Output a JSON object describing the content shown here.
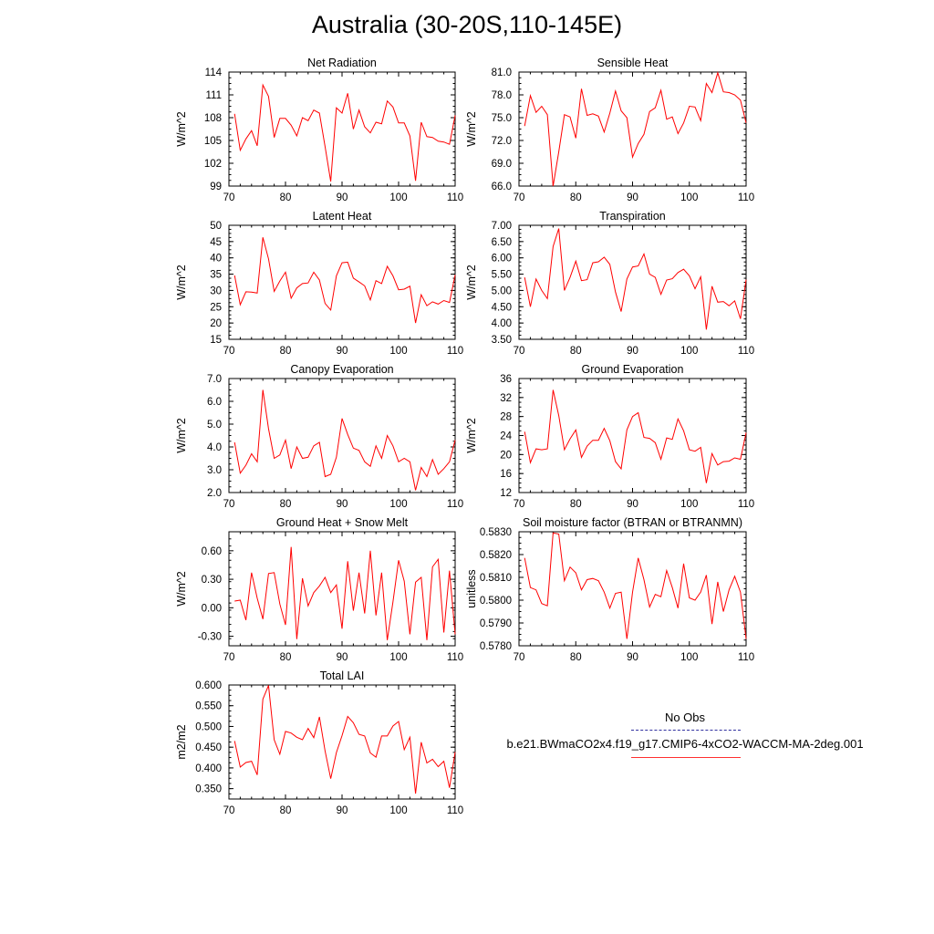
{
  "title": "Australia (30-20S,110-145E)",
  "legend": {
    "obs_label": "No Obs",
    "model_label": "b.e21.BWmaCO2x4.f19_g17.CMIP6-4xCO2-WACCM-MA-2deg.001",
    "obs_color": "#3030a0",
    "model_color": "#ff0000"
  },
  "chart_data": [
    {
      "type": "line",
      "title": "Net Radiation",
      "ylabel": "W/m^2",
      "xlim": [
        70,
        110
      ],
      "ylim": [
        99,
        114
      ],
      "yticks": [
        "99",
        "102",
        "105",
        "108",
        "111",
        "114"
      ],
      "xticks": [
        "70",
        "80",
        "90",
        "100",
        "110"
      ],
      "x": [
        71,
        72,
        73,
        74,
        75,
        76,
        77,
        78,
        79,
        80,
        81,
        82,
        83,
        84,
        85,
        86,
        87,
        88,
        89,
        90,
        91,
        92,
        93,
        94,
        95,
        96,
        97,
        98,
        99,
        100,
        101,
        102,
        103,
        104,
        105,
        106,
        107,
        108,
        109,
        110
      ],
      "series": [
        {
          "values": [
            108.5,
            103.7,
            105.2,
            106.3,
            104.3,
            112.3,
            110.8,
            105.4,
            107.9,
            107.9,
            107.0,
            105.6,
            108.0,
            107.6,
            109.0,
            108.6,
            104.2,
            99.6,
            109.3,
            108.6,
            111.2,
            106.5,
            109.0,
            106.8,
            106.0,
            107.4,
            107.2,
            110.2,
            109.4,
            107.3,
            107.3,
            105.6,
            99.7,
            107.4,
            105.5,
            105.4,
            104.9,
            104.8,
            104.5,
            108.3
          ]
        }
      ]
    },
    {
      "type": "line",
      "title": "Sensible Heat",
      "ylabel": "W/m^2",
      "xlim": [
        70,
        110
      ],
      "ylim": [
        66,
        81
      ],
      "yticks": [
        "66.0",
        "69.0",
        "72.0",
        "75.0",
        "78.0",
        "81.0"
      ],
      "xticks": [
        "70",
        "80",
        "90",
        "100",
        "110"
      ],
      "x": [
        71,
        72,
        73,
        74,
        75,
        76,
        77,
        78,
        79,
        80,
        81,
        82,
        83,
        84,
        85,
        86,
        87,
        88,
        89,
        90,
        91,
        92,
        93,
        94,
        95,
        96,
        97,
        98,
        99,
        100,
        101,
        102,
        103,
        104,
        105,
        106,
        107,
        108,
        109,
        110
      ],
      "series": [
        {
          "values": [
            73.9,
            77.9,
            75.7,
            76.5,
            75.4,
            66.0,
            70.5,
            75.4,
            75.1,
            72.3,
            78.8,
            75.3,
            75.5,
            75.2,
            73.1,
            75.6,
            78.5,
            75.9,
            75.0,
            69.8,
            71.6,
            72.8,
            75.8,
            76.3,
            78.6,
            74.8,
            75.1,
            72.9,
            74.3,
            76.5,
            76.4,
            74.6,
            79.5,
            78.3,
            80.9,
            78.4,
            78.3,
            78.0,
            77.3,
            74.3
          ]
        }
      ]
    },
    {
      "type": "line",
      "title": "Latent Heat",
      "ylabel": "W/m^2",
      "xlim": [
        70,
        110
      ],
      "ylim": [
        15,
        50
      ],
      "yticks": [
        "15",
        "20",
        "25",
        "30",
        "35",
        "40",
        "45",
        "50"
      ],
      "xticks": [
        "70",
        "80",
        "90",
        "100",
        "110"
      ],
      "x": [
        71,
        72,
        73,
        74,
        75,
        76,
        77,
        78,
        79,
        80,
        81,
        82,
        83,
        84,
        85,
        86,
        87,
        88,
        89,
        90,
        91,
        92,
        93,
        94,
        95,
        96,
        97,
        98,
        99,
        100,
        101,
        102,
        103,
        104,
        105,
        106,
        107,
        108,
        109,
        110
      ],
      "series": [
        {
          "values": [
            34.6,
            25.6,
            29.6,
            29.5,
            29.2,
            46.3,
            39.7,
            29.7,
            32.9,
            35.6,
            27.6,
            30.8,
            32.1,
            32.3,
            35.6,
            33.2,
            26.0,
            24.0,
            34.5,
            38.5,
            38.7,
            33.8,
            32.6,
            31.4,
            27.1,
            33.0,
            32.1,
            37.4,
            34.5,
            30.2,
            30.4,
            31.3,
            20.0,
            28.7,
            25.3,
            26.5,
            25.8,
            26.9,
            26.3,
            34.8
          ]
        }
      ]
    },
    {
      "type": "line",
      "title": "Transpiration",
      "ylabel": "W/m^2",
      "xlim": [
        70,
        110
      ],
      "ylim": [
        3.5,
        7.0
      ],
      "yticks": [
        "3.50",
        "4.00",
        "4.50",
        "5.00",
        "5.50",
        "6.00",
        "6.50",
        "7.00"
      ],
      "xticks": [
        "70",
        "80",
        "90",
        "100",
        "110"
      ],
      "x": [
        71,
        72,
        73,
        74,
        75,
        76,
        77,
        78,
        79,
        80,
        81,
        82,
        83,
        84,
        85,
        86,
        87,
        88,
        89,
        90,
        91,
        92,
        93,
        94,
        95,
        96,
        97,
        98,
        99,
        100,
        101,
        102,
        103,
        104,
        105,
        106,
        107,
        108,
        109,
        110
      ],
      "series": [
        {
          "values": [
            5.4,
            4.5,
            5.35,
            5.0,
            4.75,
            6.35,
            6.9,
            5.0,
            5.4,
            5.9,
            5.3,
            5.33,
            5.85,
            5.88,
            6.02,
            5.8,
            4.95,
            4.35,
            5.35,
            5.72,
            5.75,
            6.12,
            5.5,
            5.4,
            4.88,
            5.32,
            5.36,
            5.55,
            5.65,
            5.45,
            5.05,
            5.42,
            3.8,
            5.13,
            4.64,
            4.66,
            4.53,
            4.68,
            4.13,
            5.33
          ]
        }
      ]
    },
    {
      "type": "line",
      "title": "Canopy Evaporation",
      "ylabel": "W/m^2",
      "xlim": [
        70,
        110
      ],
      "ylim": [
        2.0,
        7.0
      ],
      "yticks": [
        "2.0",
        "3.0",
        "4.0",
        "5.0",
        "6.0",
        "7.0"
      ],
      "xticks": [
        "70",
        "80",
        "90",
        "100",
        "110"
      ],
      "x": [
        71,
        72,
        73,
        74,
        75,
        76,
        77,
        78,
        79,
        80,
        81,
        82,
        83,
        84,
        85,
        86,
        87,
        88,
        89,
        90,
        91,
        92,
        93,
        94,
        95,
        96,
        97,
        98,
        99,
        100,
        101,
        102,
        103,
        104,
        105,
        106,
        107,
        108,
        109,
        110
      ],
      "series": [
        {
          "values": [
            4.2,
            2.85,
            3.2,
            3.7,
            3.35,
            6.5,
            4.8,
            3.5,
            3.65,
            4.3,
            3.05,
            4.0,
            3.5,
            3.55,
            4.05,
            4.2,
            2.7,
            2.8,
            3.55,
            5.25,
            4.55,
            3.95,
            3.85,
            3.35,
            3.15,
            4.05,
            3.5,
            4.5,
            4.05,
            3.35,
            3.5,
            3.35,
            2.1,
            3.1,
            2.7,
            3.45,
            2.8,
            3.05,
            3.35,
            4.3
          ]
        }
      ]
    },
    {
      "type": "line",
      "title": "Ground Evaporation",
      "ylabel": "W/m^2",
      "xlim": [
        70,
        110
      ],
      "ylim": [
        12,
        36
      ],
      "yticks": [
        "12",
        "16",
        "20",
        "24",
        "28",
        "32",
        "36"
      ],
      "xticks": [
        "70",
        "80",
        "90",
        "100",
        "110"
      ],
      "x": [
        71,
        72,
        73,
        74,
        75,
        76,
        77,
        78,
        79,
        80,
        81,
        82,
        83,
        84,
        85,
        86,
        87,
        88,
        89,
        90,
        91,
        92,
        93,
        94,
        95,
        96,
        97,
        98,
        99,
        100,
        101,
        102,
        103,
        104,
        105,
        106,
        107,
        108,
        109,
        110
      ],
      "series": [
        {
          "values": [
            24.8,
            18.3,
            21.2,
            21.0,
            21.2,
            33.6,
            28.2,
            21.0,
            23.3,
            25.2,
            19.4,
            21.8,
            23.0,
            23.0,
            25.5,
            22.9,
            18.5,
            17.0,
            25.2,
            28.0,
            28.8,
            23.6,
            23.4,
            22.5,
            19.0,
            23.5,
            23.2,
            27.5,
            25.0,
            21.0,
            20.7,
            21.5,
            14.0,
            20.2,
            17.8,
            18.5,
            18.6,
            19.3,
            19.0,
            24.6
          ]
        }
      ]
    },
    {
      "type": "line",
      "title": "Ground Heat + Snow Melt",
      "ylabel": "W/m^2",
      "xlim": [
        70,
        110
      ],
      "ylim": [
        -0.4,
        0.8
      ],
      "yticks": [
        "-0.30",
        "0.00",
        "0.30",
        "0.60"
      ],
      "xticks": [
        "70",
        "80",
        "90",
        "100",
        "110"
      ],
      "x": [
        71,
        72,
        73,
        74,
        75,
        76,
        77,
        78,
        79,
        80,
        81,
        82,
        83,
        84,
        85,
        86,
        87,
        88,
        89,
        90,
        91,
        92,
        93,
        94,
        95,
        96,
        97,
        98,
        99,
        100,
        101,
        102,
        103,
        104,
        105,
        106,
        107,
        108,
        109,
        110
      ],
      "series": [
        {
          "values": [
            0.07,
            0.08,
            -0.13,
            0.37,
            0.1,
            -0.12,
            0.36,
            0.37,
            0.04,
            -0.18,
            0.64,
            -0.33,
            0.31,
            0.02,
            0.16,
            0.23,
            0.32,
            0.16,
            0.24,
            -0.22,
            0.49,
            -0.03,
            0.37,
            -0.06,
            0.6,
            -0.08,
            0.37,
            -0.34,
            0.06,
            0.5,
            0.28,
            -0.28,
            0.27,
            0.32,
            -0.34,
            0.43,
            0.51,
            -0.26,
            0.39,
            -0.28
          ]
        }
      ]
    },
    {
      "type": "line",
      "title": "Soil moisture factor (BTRAN or BTRANMN)",
      "ylabel": "unitless",
      "xlim": [
        70,
        110
      ],
      "ylim": [
        0.578,
        0.583
      ],
      "yticks": [
        "0.5780",
        "0.5790",
        "0.5800",
        "0.5810",
        "0.5820",
        "0.5830"
      ],
      "xticks": [
        "70",
        "80",
        "90",
        "100",
        "110"
      ],
      "x": [
        71,
        72,
        73,
        74,
        75,
        76,
        77,
        78,
        79,
        80,
        81,
        82,
        83,
        84,
        85,
        86,
        87,
        88,
        89,
        90,
        91,
        92,
        93,
        94,
        95,
        96,
        97,
        98,
        99,
        100,
        101,
        102,
        103,
        104,
        105,
        106,
        107,
        108,
        109,
        110
      ],
      "series": [
        {
          "values": [
            0.58185,
            0.58055,
            0.58045,
            0.57985,
            0.57975,
            0.58295,
            0.5829,
            0.58085,
            0.58145,
            0.5812,
            0.58045,
            0.5809,
            0.58095,
            0.58085,
            0.58035,
            0.57965,
            0.5803,
            0.58035,
            0.5783,
            0.58035,
            0.58185,
            0.5809,
            0.5797,
            0.58025,
            0.58015,
            0.5813,
            0.58055,
            0.57965,
            0.5816,
            0.5801,
            0.58,
            0.58035,
            0.5811,
            0.57895,
            0.5808,
            0.5795,
            0.58045,
            0.58105,
            0.58035,
            0.5783
          ]
        }
      ]
    },
    {
      "type": "line",
      "title": "Total LAI",
      "ylabel": "m2/m2",
      "xlim": [
        70,
        110
      ],
      "ylim": [
        0.325,
        0.6
      ],
      "yticks": [
        "0.350",
        "0.400",
        "0.450",
        "0.500",
        "0.550",
        "0.600"
      ],
      "xticks": [
        "70",
        "80",
        "90",
        "100",
        "110"
      ],
      "x": [
        71,
        72,
        73,
        74,
        75,
        76,
        77,
        78,
        79,
        80,
        81,
        82,
        83,
        84,
        85,
        86,
        87,
        88,
        89,
        90,
        91,
        92,
        93,
        94,
        95,
        96,
        97,
        98,
        99,
        100,
        101,
        102,
        103,
        104,
        105,
        106,
        107,
        108,
        109,
        110
      ],
      "series": [
        {
          "values": [
            0.465,
            0.402,
            0.413,
            0.416,
            0.383,
            0.566,
            0.599,
            0.468,
            0.433,
            0.488,
            0.484,
            0.474,
            0.468,
            0.495,
            0.473,
            0.523,
            0.441,
            0.374,
            0.437,
            0.478,
            0.524,
            0.509,
            0.481,
            0.477,
            0.436,
            0.426,
            0.477,
            0.477,
            0.501,
            0.512,
            0.444,
            0.474,
            0.338,
            0.462,
            0.412,
            0.421,
            0.403,
            0.416,
            0.352,
            0.438
          ]
        }
      ]
    }
  ]
}
